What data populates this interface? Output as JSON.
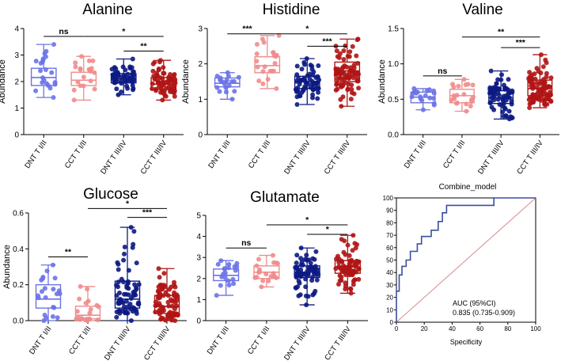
{
  "colors": {
    "DNT T I/II": "#6b73e8",
    "CCT T I/II": "#f08c8c",
    "DNT T III/IV": "#0c1a82",
    "CCT T III/IV": "#b01414",
    "roc_curve": "#3a4fa0",
    "roc_diagonal": "#d98a8a"
  },
  "chart_data": [
    {
      "type": "box",
      "title": "Alanine",
      "ylabel": "Abundance",
      "ylim": [
        0,
        4
      ],
      "yticks": [
        0,
        1,
        2,
        3,
        4
      ],
      "categories": [
        "DNT T I/II",
        "CCT T I/II",
        "DNT T III/IV",
        "CCT T III/IV"
      ],
      "boxes": [
        {
          "min": 1.4,
          "q1": 1.85,
          "median": 2.15,
          "q3": 2.5,
          "max": 3.4,
          "n": 22
        },
        {
          "min": 1.3,
          "q1": 1.85,
          "median": 2.05,
          "q3": 2.35,
          "max": 2.95,
          "n": 20
        },
        {
          "min": 1.5,
          "q1": 1.95,
          "median": 2.1,
          "q3": 2.3,
          "max": 2.85,
          "n": 60
        },
        {
          "min": 1.3,
          "q1": 1.7,
          "median": 1.9,
          "q3": 2.15,
          "max": 2.8,
          "n": 70
        }
      ],
      "significance": [
        {
          "from": 0,
          "to": 1,
          "label": "ns",
          "y": 3.7
        },
        {
          "from": 1,
          "to": 3,
          "label": "*",
          "y": 3.7
        },
        {
          "from": 2,
          "to": 3,
          "label": "**",
          "y": 3.15
        }
      ]
    },
    {
      "type": "box",
      "title": "Histidine",
      "ylabel": "Abundance",
      "ylim": [
        0,
        3
      ],
      "yticks": [
        0,
        1,
        2,
        3
      ],
      "categories": [
        "DNT T I/II",
        "CCT T I/II",
        "DNT T III/IV",
        "CCT T III/IV"
      ],
      "boxes": [
        {
          "min": 1.0,
          "q1": 1.35,
          "median": 1.45,
          "q3": 1.6,
          "max": 1.75,
          "n": 20
        },
        {
          "min": 1.3,
          "q1": 1.75,
          "median": 1.95,
          "q3": 2.2,
          "max": 2.8,
          "n": 22
        },
        {
          "min": 0.85,
          "q1": 1.3,
          "median": 1.5,
          "q3": 1.65,
          "max": 2.15,
          "n": 60
        },
        {
          "min": 0.8,
          "q1": 1.5,
          "median": 1.8,
          "q3": 2.05,
          "max": 2.7,
          "n": 80
        }
      ],
      "significance": [
        {
          "from": 0,
          "to": 1,
          "label": "***",
          "y": 2.85
        },
        {
          "from": 1,
          "to": 3,
          "label": "*",
          "y": 2.85
        },
        {
          "from": 2,
          "to": 3,
          "label": "***",
          "y": 2.5
        }
      ]
    },
    {
      "type": "box",
      "title": "Valine",
      "ylabel": "Abundance",
      "ylim": [
        0,
        1.5
      ],
      "yticks": [
        0.0,
        0.5,
        1.0,
        1.5
      ],
      "categories": [
        "DNT T I/II",
        "CCT T I/II",
        "DNT T III/IV",
        "CCT T III/IV"
      ],
      "boxes": [
        {
          "min": 0.35,
          "q1": 0.45,
          "median": 0.53,
          "q3": 0.6,
          "max": 0.65,
          "n": 20
        },
        {
          "min": 0.33,
          "q1": 0.45,
          "median": 0.55,
          "q3": 0.64,
          "max": 0.78,
          "n": 20
        },
        {
          "min": 0.22,
          "q1": 0.44,
          "median": 0.52,
          "q3": 0.62,
          "max": 0.9,
          "n": 70
        },
        {
          "min": 0.38,
          "q1": 0.55,
          "median": 0.65,
          "q3": 0.77,
          "max": 1.13,
          "n": 90
        }
      ],
      "significance": [
        {
          "from": 0,
          "to": 1,
          "label": "ns",
          "y": 0.83
        },
        {
          "from": 1,
          "to": 3,
          "label": "**",
          "y": 1.38
        },
        {
          "from": 2,
          "to": 3,
          "label": "***",
          "y": 1.23
        }
      ]
    },
    {
      "type": "box",
      "title": "Glucose",
      "ylabel": "Abundance",
      "ylim": [
        0,
        0.6
      ],
      "yticks": [
        0.0,
        0.2,
        0.4,
        0.6
      ],
      "categories": [
        "DNT T I/II",
        "CCT T I/II",
        "DNT T III/IV",
        "CCT T III/IV"
      ],
      "boxes": [
        {
          "min": 0.0,
          "q1": 0.07,
          "median": 0.12,
          "q3": 0.2,
          "max": 0.31,
          "n": 22
        },
        {
          "min": 0.0,
          "q1": 0.01,
          "median": 0.03,
          "q3": 0.08,
          "max": 0.19,
          "n": 20
        },
        {
          "min": 0.0,
          "q1": 0.07,
          "median": 0.12,
          "q3": 0.22,
          "max": 0.52,
          "n": 70
        },
        {
          "min": 0.0,
          "q1": 0.04,
          "median": 0.08,
          "q3": 0.14,
          "max": 0.29,
          "n": 80
        }
      ],
      "significance": [
        {
          "from": 0,
          "to": 1,
          "label": "**",
          "y": 0.355
        },
        {
          "from": 1,
          "to": 3,
          "label": "*",
          "y": 0.625
        },
        {
          "from": 2,
          "to": 3,
          "label": "***",
          "y": 0.575
        }
      ]
    },
    {
      "type": "box",
      "title": "Glutamate",
      "ylabel": "",
      "ylim": [
        0,
        5
      ],
      "yticks": [
        0,
        1,
        2,
        3,
        4,
        5
      ],
      "categories": [
        "DNT T I/II",
        "CCT T I/II",
        "DNT T III/IV",
        "CCT T III/IV"
      ],
      "boxes": [
        {
          "min": 1.2,
          "q1": 1.9,
          "median": 2.15,
          "q3": 2.45,
          "max": 2.85,
          "n": 20
        },
        {
          "min": 1.6,
          "q1": 2.0,
          "median": 2.3,
          "q3": 2.6,
          "max": 3.1,
          "n": 20
        },
        {
          "min": 0.75,
          "q1": 2.05,
          "median": 2.3,
          "q3": 2.6,
          "max": 3.45,
          "n": 70
        },
        {
          "min": 1.3,
          "q1": 2.25,
          "median": 2.55,
          "q3": 2.85,
          "max": 4.05,
          "n": 80
        }
      ],
      "significance": [
        {
          "from": 0,
          "to": 1,
          "label": "ns",
          "y": 3.45
        },
        {
          "from": 1,
          "to": 3,
          "label": "*",
          "y": 4.55
        },
        {
          "from": 2,
          "to": 3,
          "label": "*",
          "y": 4.1
        }
      ]
    },
    {
      "type": "line",
      "title": "Combine_model",
      "xlabel": "Specificity",
      "ylabel": "",
      "xlim": [
        0,
        100
      ],
      "ylim": [
        0,
        100
      ],
      "xticks": [
        0,
        20,
        40,
        60,
        80,
        100
      ],
      "yticks": [
        0,
        10,
        20,
        30,
        40,
        50,
        60,
        70,
        80,
        90,
        100
      ],
      "series": [
        {
          "name": "ROC",
          "x": [
            0,
            0,
            2,
            2,
            4,
            4,
            7,
            7,
            10,
            10,
            15,
            15,
            18,
            18,
            25,
            25,
            30,
            30,
            33,
            33,
            36,
            36,
            70,
            70,
            100
          ],
          "y": [
            0,
            25,
            25,
            38,
            38,
            45,
            45,
            50,
            50,
            57,
            57,
            63,
            63,
            69,
            69,
            74,
            74,
            81,
            81,
            88,
            88,
            94,
            94,
            100,
            100
          ]
        },
        {
          "name": "Reference",
          "x": [
            0,
            100
          ],
          "y": [
            0,
            100
          ]
        }
      ],
      "annotation": [
        "AUC (95%CI)",
        "0.835 (0.735-0.909)"
      ]
    }
  ]
}
